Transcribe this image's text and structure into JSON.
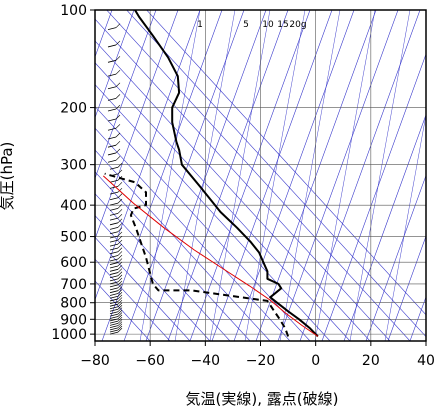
{
  "chart_data": {
    "type": "line",
    "title": "",
    "xlabel": "気温(実線), 露点(破線)",
    "ylabel": "気圧(hPa)",
    "x_ticks": [
      -80,
      -60,
      -40,
      -20,
      0,
      20,
      40
    ],
    "y_ticks": [
      100,
      200,
      300,
      400,
      500,
      600,
      700,
      800,
      900,
      1000
    ],
    "xlim": [
      -80,
      40
    ],
    "ylim": [
      1050,
      100
    ],
    "y_scale": "log",
    "mixing_ratio_labels": [
      "1",
      "5",
      "10",
      "15",
      "20g"
    ],
    "colors": {
      "temperature": "#000000",
      "dewpoint": "#000000",
      "parcel": "#e00000",
      "background_lines": "#3a3acc"
    },
    "series": [
      {
        "name": "気温",
        "style": "solid",
        "x": [
          0.8,
          -2.0,
          -6.0,
          -10.0,
          -14.0,
          -16.5,
          -12.5,
          -13.5,
          -17.5,
          -17.5,
          -19.0,
          -20.5,
          -23.5,
          -28.5,
          -34.5,
          -42.0,
          -48.5,
          -49.5,
          -50.5,
          -52.0,
          -52.0,
          -49.5,
          -50.0,
          -53.5,
          -59.0,
          -64.0,
          -65.5
        ],
        "y": [
          1016,
          960,
          900,
          850,
          800,
          770,
          722,
          700,
          675,
          640,
          600,
          560,
          520,
          470,
          420,
          350,
          300,
          270,
          255,
          222,
          200,
          180,
          160,
          140,
          120,
          105,
          100
        ]
      },
      {
        "name": "露点",
        "style": "dashed",
        "x": [
          -10.0,
          -11.0,
          -13.0,
          -15.0,
          -17.5,
          -45.0,
          -57.0,
          -59.0,
          -61.5,
          -65.0,
          -67.0,
          -66.0,
          -61.5,
          -61.5,
          -65.5,
          -76.5
        ],
        "y": [
          1016,
          960,
          900,
          850,
          790,
          733,
          733,
          700,
          580,
          475,
          430,
          410,
          400,
          365,
          340,
          320
        ]
      },
      {
        "name": "parcel",
        "style": "solid",
        "x": [
          0.8,
          -5.0,
          -11.0,
          -16.5,
          -24.0,
          -34.0,
          -44.0,
          -55.0,
          -66.0,
          -77.0
        ],
        "y": [
          1016,
          940,
          860,
          785,
          710,
          625,
          550,
          470,
          395,
          325
        ]
      }
    ]
  }
}
